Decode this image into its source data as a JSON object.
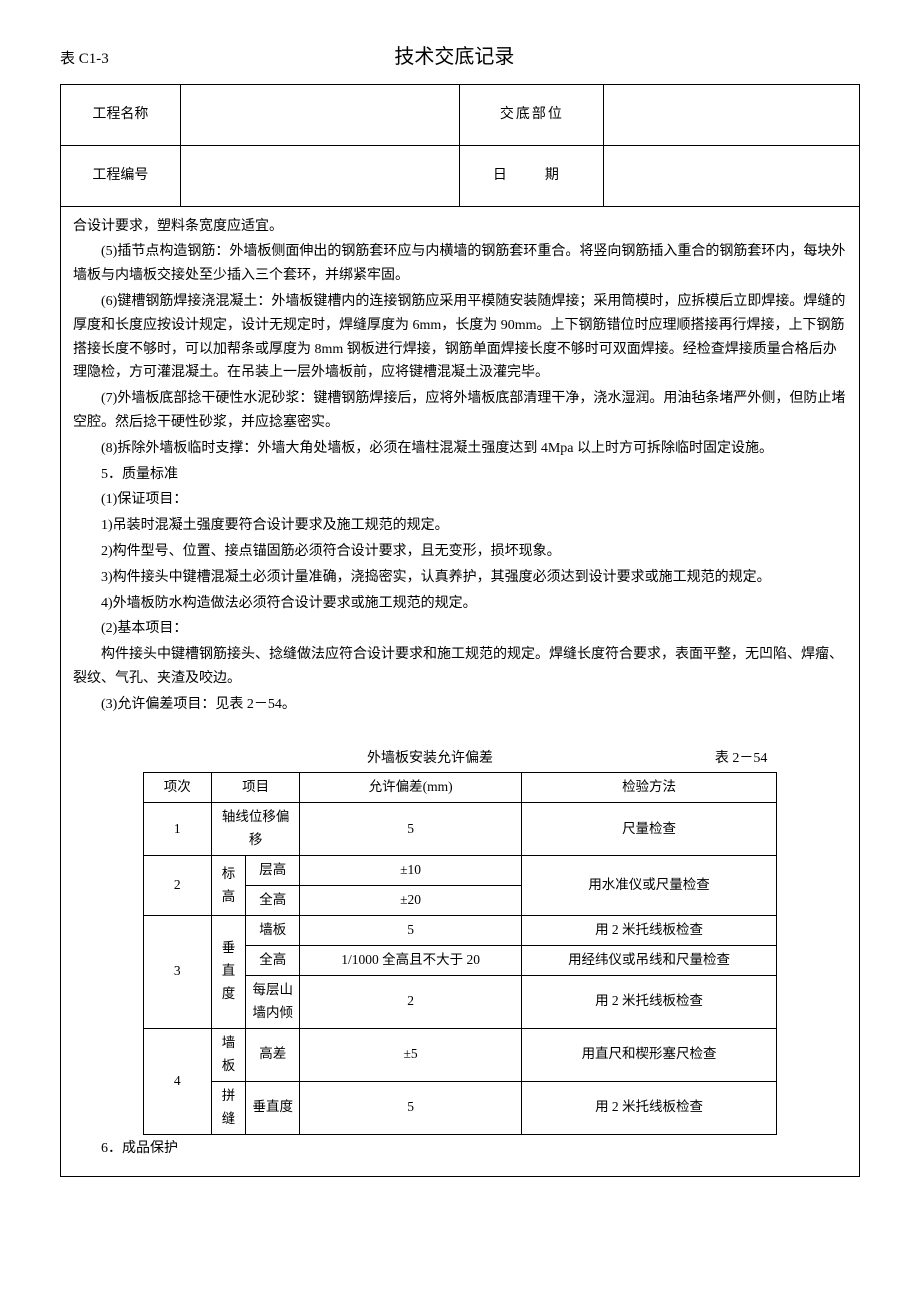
{
  "header": {
    "table_label": "表 C1-3",
    "title": "技术交底记录"
  },
  "info": {
    "project_name_label": "工程名称",
    "project_name_value": "",
    "position_label": "交底部位",
    "position_value": "",
    "project_no_label": "工程编号",
    "project_no_value": "",
    "date_label": "日　期",
    "date_value": ""
  },
  "content": {
    "line0": "合设计要求，塑料条宽度应适宜。",
    "p5": "(5)插节点构造钢筋：外墙板侧面伸出的钢筋套环应与内横墙的钢筋套环重合。将竖向钢筋插入重合的钢筋套环内，每块外墙板与内墙板交接处至少插入三个套环，并绑紧牢固。",
    "p6": "(6)键槽钢筋焊接浇混凝土：外墙板键槽内的连接钢筋应采用平模随安装随焊接；采用筒模时，应拆模后立即焊接。焊缝的厚度和长度应按设计规定，设计无规定时，焊缝厚度为 6mm，长度为 90mm。上下钢筋错位时应理顺搭接再行焊接，上下钢筋搭接长度不够时，可以加帮条或厚度为 8mm 钢板进行焊接，钢筋单面焊接长度不够时可双面焊接。经检查焊接质量合格后办理隐检，方可灌混凝土。在吊装上一层外墙板前，应将键槽混凝土汲灌完毕。",
    "p7": "(7)外墙板底部捻干硬性水泥砂浆：键槽钢筋焊接后，应将外墙板底部清理干净，浇水湿润。用油毡条堵严外侧，但防止堵空腔。然后捻干硬性砂浆，并应捻塞密实。",
    "p8": "(8)拆除外墙板临时支撑：外墙大角处墙板，必须在墙柱混凝土强度达到 4Mpa 以上时方可拆除临时固定设施。",
    "sec5": "5．质量标准",
    "s5_1": "(1)保证项目：",
    "s5_1_1": "1)吊装时混凝土强度要符合设计要求及施工规范的规定。",
    "s5_1_2": "2)构件型号、位置、接点锚固筋必须符合设计要求，且无变形，损坏现象。",
    "s5_1_3": "3)构件接头中键槽混凝土必须计量准确，浇捣密实，认真养护，其强度必须达到设计要求或施工规范的规定。",
    "s5_1_4": "4)外墙板防水构造做法必须符合设计要求或施工规范的规定。",
    "s5_2": "(2)基本项目：",
    "s5_2_1": "构件接头中键槽钢筋接头、捻缝做法应符合设计要求和施工规范的规定。焊缝长度符合要求，表面平整，无凹陷、焊瘤、裂纹、气孔、夹渣及咬边。",
    "s5_3": "(3)允许偏差项目：见表 2－54。",
    "sec6": "6．成品保护"
  },
  "deviation_table": {
    "caption": "外墙板安装允许偏差",
    "table_no": "表 2－54",
    "headers": {
      "index": "项次",
      "item": "项目",
      "deviation": "允许偏差(mm)",
      "method": "检验方法"
    },
    "rows": {
      "r1": {
        "idx": "1",
        "item_span": "轴线位移偏移",
        "dev": "5",
        "method": "尺量检查"
      },
      "r2a": {
        "idx": "2",
        "cat": "标高",
        "sub": "层高",
        "dev": "±10",
        "method": "用水准仪或尺量检查"
      },
      "r2b": {
        "sub": "全高",
        "dev": "±20"
      },
      "r3a": {
        "idx": "3",
        "cat": "垂直度",
        "sub": "墙板",
        "dev": "5",
        "method": "用 2 米托线板检查"
      },
      "r3b": {
        "sub": "全高",
        "dev": "1/1000 全高且不大于 20",
        "method": "用经纬仪或吊线和尺量检查"
      },
      "r3c": {
        "sub": "每层山墙内倾",
        "dev": "2",
        "method": "用 2 米托线板检查"
      },
      "r4a": {
        "idx": "4",
        "cat": "墙板",
        "sub": "高差",
        "dev": "±5",
        "method": "用直尺和楔形塞尺检查"
      },
      "r4b": {
        "cat": "拼缝",
        "sub": "垂直度",
        "dev": "5",
        "method": "用 2 米托线板检查"
      }
    }
  }
}
